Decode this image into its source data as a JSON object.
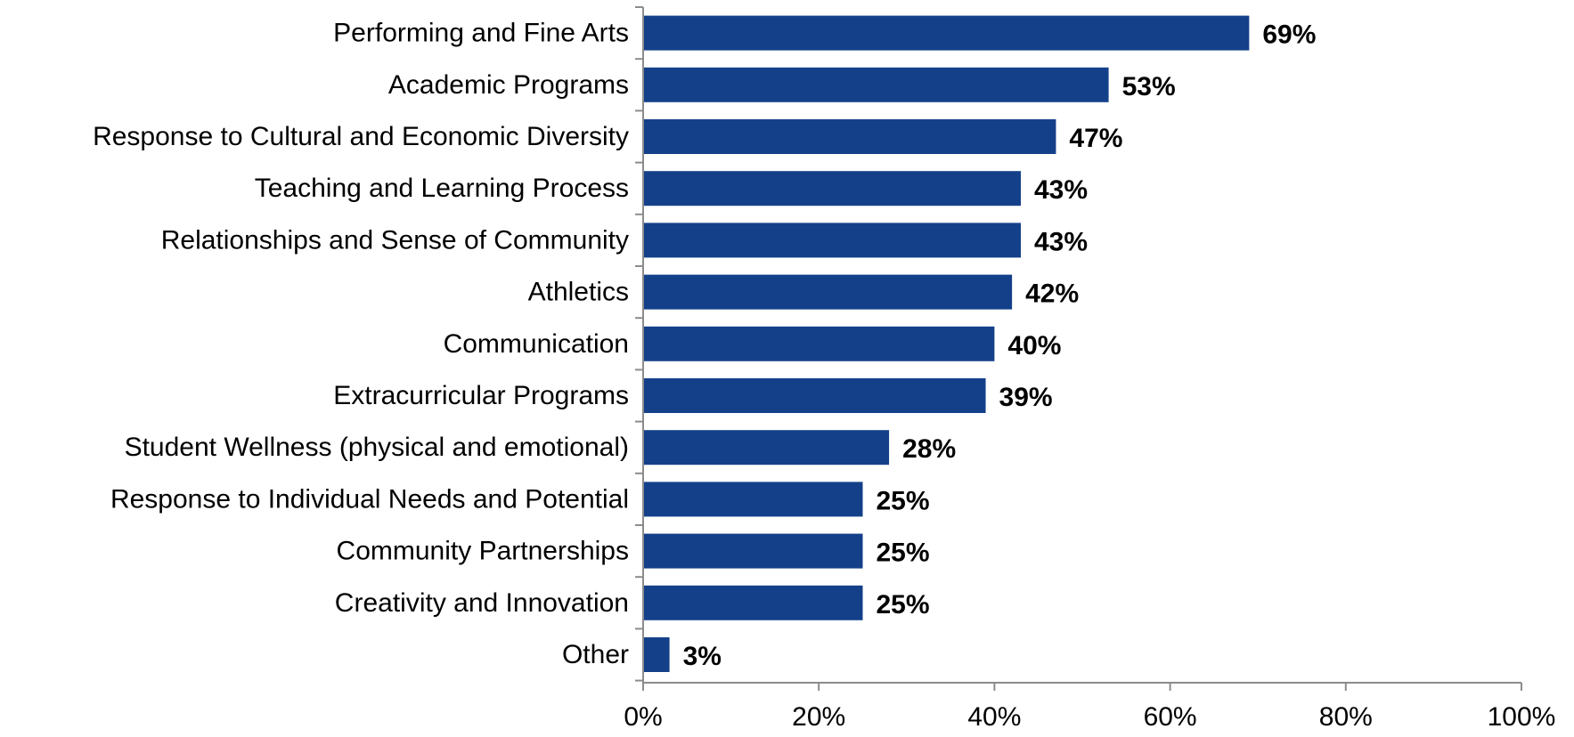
{
  "chart_data": {
    "type": "bar",
    "orientation": "horizontal",
    "title": "",
    "xlabel": "",
    "ylabel": "",
    "categories": [
      "Performing and Fine Arts",
      "Academic Programs",
      "Response to Cultural and Economic Diversity",
      "Teaching and Learning Process",
      "Relationships and Sense of Community",
      "Athletics",
      "Communication",
      "Extracurricular Programs",
      "Student Wellness (physical and emotional)",
      "Response to Individual Needs and Potential",
      "Community Partnerships",
      "Creativity and Innovation",
      "Other"
    ],
    "values": [
      69,
      53,
      47,
      43,
      43,
      42,
      40,
      39,
      28,
      25,
      25,
      25,
      3
    ],
    "value_labels": [
      "69%",
      "53%",
      "47%",
      "43%",
      "43%",
      "42%",
      "40%",
      "39%",
      "28%",
      "25%",
      "25%",
      "25%",
      "3%"
    ],
    "xlim": [
      0,
      100
    ],
    "x_ticks": [
      0,
      20,
      40,
      60,
      80,
      100
    ],
    "x_tick_labels": [
      "0%",
      "20%",
      "40%",
      "60%",
      "80%",
      "100%"
    ],
    "bar_color": "#14408a",
    "grid": false,
    "legend": "none"
  }
}
